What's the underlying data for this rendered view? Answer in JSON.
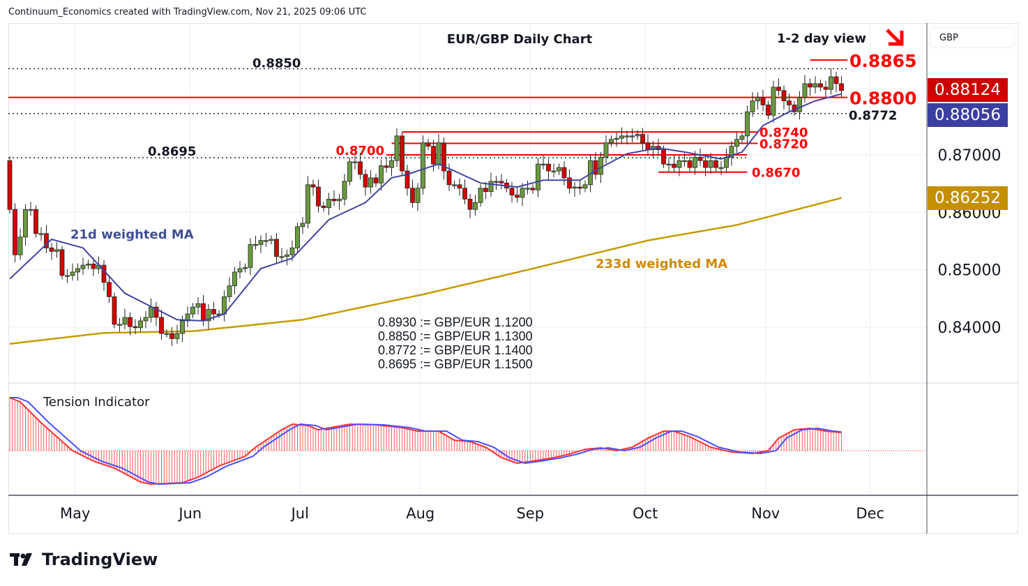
{
  "caption": "Continuum_Economics created with TradingView.com, Nov 21, 2025 09:06 UTC",
  "title": "EUR/GBP Daily Chart",
  "view_label": "1-2 day view",
  "view_direction_icon": "arrow-down-right",
  "currency_selector": "GBP",
  "brand": "TradingView",
  "colors": {
    "up": "#6a9a3e",
    "down": "#d40000",
    "level": "#ff0000",
    "ma21": "#3f44a0",
    "ma233": "#c49b00",
    "tension_red": "#ff3333",
    "tension_blue": "#4d4dff",
    "grid": "#e8eef5"
  },
  "tags": {
    "last_price": "0.88124",
    "ma21": "0.88056",
    "ma233": "0.86252"
  },
  "ma_labels": {
    "ma21": "21d weighted MA",
    "ma233": "233d weighted MA"
  },
  "tension_label": "Tension Indicator",
  "conversions": [
    "0.8930 := GBP/EUR 1.1200",
    "0.8850 := GBP/EUR 1.1300",
    "0.8772 := GBP/EUR 1.1400",
    "0.8695 := GBP/EUR 1.1500"
  ],
  "chart_data": {
    "type": "candlestick",
    "title": "EUR/GBP Daily Chart",
    "x_start": "2025-04-14",
    "x_ticks": [
      "May",
      "Jun",
      "Jul",
      "Aug",
      "Sep",
      "Oct",
      "Nov",
      "Dec"
    ],
    "x_tick_days": [
      13,
      35,
      56,
      79,
      100,
      122,
      145,
      165
    ],
    "y_ticks": [
      "0.84000",
      "0.85000",
      "0.86000",
      "0.87000"
    ],
    "y_tick_values": [
      0.84,
      0.85,
      0.86,
      0.87
    ],
    "ylim": [
      0.834,
      0.8925
    ],
    "first_open": 0.869,
    "closes": [
      0.8605,
      0.8526,
      0.8557,
      0.8605,
      0.8605,
      0.8563,
      0.8563,
      0.8538,
      0.8532,
      0.8535,
      0.849,
      0.849,
      0.8496,
      0.8502,
      0.8508,
      0.851,
      0.8502,
      0.8508,
      0.8478,
      0.8453,
      0.8405,
      0.8405,
      0.8417,
      0.8401,
      0.8399,
      0.8411,
      0.8417,
      0.8435,
      0.8417,
      0.8389,
      0.8389,
      0.838,
      0.8389,
      0.8411,
      0.8423,
      0.8435,
      0.8441,
      0.8411,
      0.8431,
      0.8423,
      0.8423,
      0.8453,
      0.8472,
      0.8496,
      0.8502,
      0.8504,
      0.8544,
      0.8544,
      0.8551,
      0.8551,
      0.8553,
      0.8523,
      0.8523,
      0.8526,
      0.8538,
      0.8575,
      0.8581,
      0.8648,
      0.8644,
      0.8611,
      0.8608,
      0.8623,
      0.862,
      0.8623,
      0.8654,
      0.8688,
      0.8688,
      0.8666,
      0.8644,
      0.866,
      0.8651,
      0.8681,
      0.8678,
      0.869,
      0.8733,
      0.8672,
      0.8642,
      0.8617,
      0.8642,
      0.8721,
      0.8715,
      0.8684,
      0.8721,
      0.8672,
      0.8648,
      0.8648,
      0.8642,
      0.8623,
      0.8605,
      0.8617,
      0.8642,
      0.8636,
      0.8654,
      0.8654,
      0.8651,
      0.8642,
      0.863,
      0.8626,
      0.8642,
      0.8642,
      0.8639,
      0.8684,
      0.8684,
      0.8672,
      0.8672,
      0.8678,
      0.866,
      0.8642,
      0.8644,
      0.8642,
      0.8648,
      0.869,
      0.8666,
      0.8696,
      0.8721,
      0.8727,
      0.8729,
      0.8733,
      0.8733,
      0.8733,
      0.8736,
      0.8721,
      0.8709,
      0.8715,
      0.8709,
      0.8684,
      0.8684,
      0.8678,
      0.869,
      0.869,
      0.8678,
      0.8696,
      0.869,
      0.8678,
      0.869,
      0.8678,
      0.8678,
      0.8696,
      0.8715,
      0.8727,
      0.8733,
      0.8775,
      0.8794,
      0.88,
      0.8787,
      0.8769,
      0.8818,
      0.8812,
      0.8794,
      0.8787,
      0.8775,
      0.88,
      0.8824,
      0.8818,
      0.8824,
      0.8818,
      0.8814,
      0.8836,
      0.8824,
      0.8812
    ],
    "ma21": [
      [
        0,
        0.8484
      ],
      [
        8,
        0.8553
      ],
      [
        14,
        0.8538
      ],
      [
        22,
        0.8459
      ],
      [
        32,
        0.8413
      ],
      [
        37,
        0.8411
      ],
      [
        41,
        0.8423
      ],
      [
        48,
        0.8502
      ],
      [
        54,
        0.852
      ],
      [
        61,
        0.8587
      ],
      [
        68,
        0.8617
      ],
      [
        73,
        0.866
      ],
      [
        76,
        0.8666
      ],
      [
        82,
        0.8684
      ],
      [
        85,
        0.8672
      ],
      [
        90,
        0.8651
      ],
      [
        97,
        0.8644
      ],
      [
        102,
        0.8656
      ],
      [
        109,
        0.8656
      ],
      [
        113,
        0.8678
      ],
      [
        118,
        0.8702
      ],
      [
        124,
        0.8712
      ],
      [
        129,
        0.8705
      ],
      [
        136,
        0.8693
      ],
      [
        140,
        0.8705
      ],
      [
        144,
        0.8751
      ],
      [
        149,
        0.8775
      ],
      [
        154,
        0.8794
      ],
      [
        159,
        0.8806
      ]
    ],
    "ma233": [
      [
        0,
        0.8371
      ],
      [
        18,
        0.839
      ],
      [
        35,
        0.8393
      ],
      [
        56,
        0.8413
      ],
      [
        79,
        0.8457
      ],
      [
        100,
        0.8502
      ],
      [
        122,
        0.8551
      ],
      [
        139,
        0.8578
      ],
      [
        159,
        0.8625
      ]
    ],
    "levels": [
      {
        "label": "0.8865",
        "value": 0.8865,
        "style": "solid-red",
        "from_day": 153,
        "to_day": 160
      },
      {
        "label": "0.8850",
        "value": 0.885,
        "style": "dotted",
        "from_day": 0,
        "to_day": 160
      },
      {
        "label": "0.8800",
        "value": 0.88,
        "style": "solid-red",
        "from_day": 0,
        "to_day": 160
      },
      {
        "label": "0.8772",
        "value": 0.8772,
        "style": "dotted",
        "from_day": 0,
        "to_day": 160
      },
      {
        "label": "0.8740",
        "value": 0.874,
        "style": "solid-red",
        "from_day": 75,
        "to_day": 143
      },
      {
        "label": "0.8720",
        "value": 0.872,
        "style": "solid-red",
        "from_day": 73,
        "to_day": 143
      },
      {
        "label": "0.8700",
        "value": 0.87,
        "style": "solid-red",
        "from_day": 72,
        "to_day": 141
      },
      {
        "label": "0.8695",
        "value": 0.8695,
        "style": "dotted",
        "from_day": 0,
        "to_day": 141
      },
      {
        "label": "0.8670",
        "value": 0.867,
        "style": "solid-red",
        "from_day": 124,
        "to_day": 141
      }
    ],
    "tension": [
      [
        0,
        76
      ],
      [
        2,
        70
      ],
      [
        6,
        40
      ],
      [
        12,
        0
      ],
      [
        16,
        -15
      ],
      [
        20,
        -25
      ],
      [
        25,
        -45
      ],
      [
        27,
        -48
      ],
      [
        33,
        -46
      ],
      [
        36,
        -38
      ],
      [
        40,
        -22
      ],
      [
        45,
        -8
      ],
      [
        47,
        5
      ],
      [
        52,
        30
      ],
      [
        54,
        38
      ],
      [
        57,
        36
      ],
      [
        59,
        30
      ],
      [
        62,
        34
      ],
      [
        65,
        38
      ],
      [
        70,
        37
      ],
      [
        75,
        33
      ],
      [
        78,
        28
      ],
      [
        82,
        28
      ],
      [
        85,
        15
      ],
      [
        88,
        13
      ],
      [
        91,
        5
      ],
      [
        94,
        -10
      ],
      [
        97,
        -18
      ],
      [
        100,
        -15
      ],
      [
        104,
        -10
      ],
      [
        107,
        -5
      ],
      [
        110,
        2
      ],
      [
        113,
        4
      ],
      [
        116,
        0
      ],
      [
        119,
        5
      ],
      [
        122,
        18
      ],
      [
        125,
        28
      ],
      [
        127,
        28
      ],
      [
        130,
        20
      ],
      [
        134,
        5
      ],
      [
        138,
        -2
      ],
      [
        142,
        -4
      ],
      [
        145,
        0
      ],
      [
        147,
        18
      ],
      [
        150,
        30
      ],
      [
        153,
        32
      ],
      [
        156,
        28
      ],
      [
        159,
        26
      ]
    ]
  }
}
